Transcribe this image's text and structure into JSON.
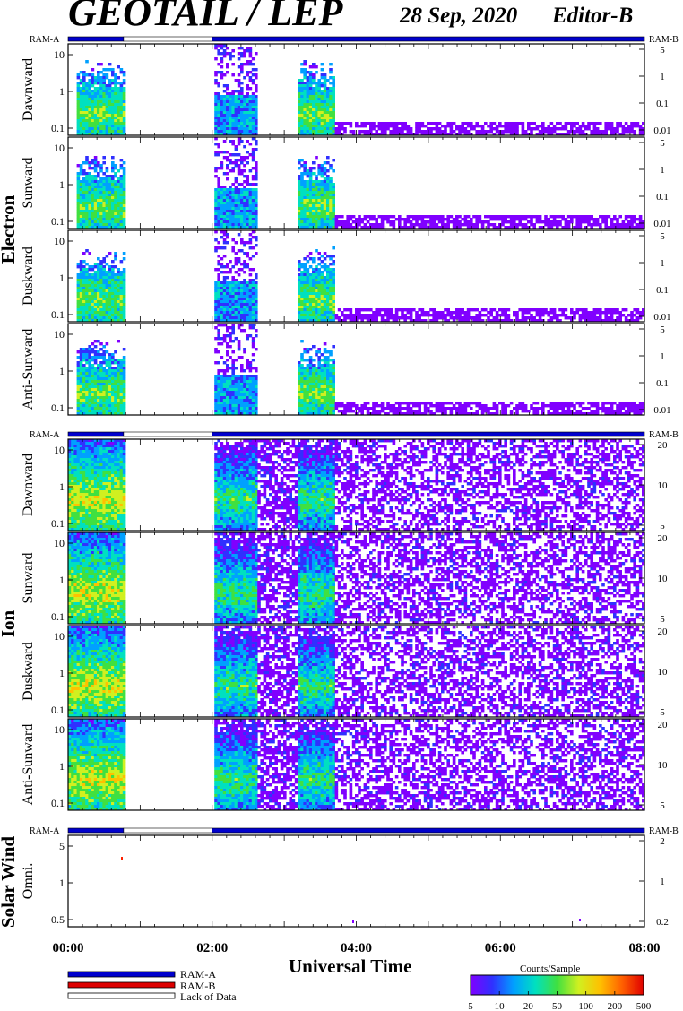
{
  "header": {
    "title": "GEOTAIL / LEP",
    "date": "28 Sep, 2020",
    "editor": "Editor-B"
  },
  "chart_data": {
    "type": "heatmap",
    "xlabel": "Universal Time",
    "x_ticks": [
      "00:00",
      "02:00",
      "04:00",
      "06:00",
      "08:00"
    ],
    "x_range_hours": [
      0,
      8
    ],
    "ram_bar": {
      "left_label": "RAM-A",
      "right_label": "RAM-B",
      "segments": [
        {
          "state": "RAM-A",
          "start": 0,
          "end": 0.77
        },
        {
          "state": "Lack of Data",
          "start": 0.77,
          "end": 2.0
        },
        {
          "state": "RAM-A",
          "start": 2.0,
          "end": 8.0
        }
      ]
    },
    "groups": [
      {
        "name": "Electron",
        "panels": [
          {
            "label": "Dawnward",
            "left_ticks": [
              "10",
              "1",
              "0.1"
            ],
            "right_ticks": [
              "5",
              "1",
              "0.1",
              "0.01"
            ]
          },
          {
            "label": "Sunward",
            "left_ticks": [
              "10",
              "1",
              "0.1"
            ],
            "right_ticks": [
              "5",
              "1",
              "0.1",
              "0.01"
            ]
          },
          {
            "label": "Duskward",
            "left_ticks": [
              "10",
              "1",
              "0.1"
            ],
            "right_ticks": [
              "5",
              "1",
              "0.1",
              "0.01"
            ]
          },
          {
            "label": "Anti-Sunward",
            "left_ticks": [
              "10",
              "1",
              "0.1"
            ],
            "right_ticks": [
              "5",
              "1",
              "0.1",
              "0.01"
            ]
          }
        ],
        "activity": [
          {
            "start": 0.08,
            "end": 0.77,
            "level": 3
          },
          {
            "start": 2.0,
            "end": 2.6,
            "level": 1
          },
          {
            "start": 3.15,
            "end": 3.7,
            "level": 3
          },
          {
            "start": 3.7,
            "end": 8.0,
            "level": 0.3
          }
        ]
      },
      {
        "name": "Ion",
        "panels": [
          {
            "label": "Dawnward",
            "left_ticks": [
              "10",
              "1",
              "0.1"
            ],
            "right_ticks": [
              "20",
              "10",
              "5"
            ]
          },
          {
            "label": "Sunward",
            "left_ticks": [
              "10",
              "1",
              "0.1"
            ],
            "right_ticks": [
              "20",
              "10",
              "5"
            ]
          },
          {
            "label": "Duskward",
            "left_ticks": [
              "10",
              "1",
              "0.1"
            ],
            "right_ticks": [
              "20",
              "10",
              "5"
            ]
          },
          {
            "label": "Anti-Sunward",
            "left_ticks": [
              "10",
              "1",
              "0.1"
            ],
            "right_ticks": [
              "20",
              "10",
              "5"
            ]
          }
        ],
        "activity": [
          {
            "start": 0.0,
            "end": 0.77,
            "level": 4
          },
          {
            "start": 2.0,
            "end": 2.6,
            "level": 2.5
          },
          {
            "start": 2.6,
            "end": 3.15,
            "level": 0.6
          },
          {
            "start": 3.15,
            "end": 3.7,
            "level": 2.5
          },
          {
            "start": 3.7,
            "end": 8.0,
            "level": 0.5
          }
        ]
      },
      {
        "name": "Solar Wind",
        "panels": [
          {
            "label": "Omni.",
            "left_ticks": [
              "5",
              "1",
              "0.5"
            ],
            "right_ticks": [
              "2",
              "1",
              "0.2"
            ]
          }
        ],
        "activity": []
      }
    ],
    "legend": [
      {
        "label": "RAM-A",
        "color": "#0000cc"
      },
      {
        "label": "RAM-B",
        "color": "#dd0000"
      },
      {
        "label": "Lack of Data",
        "color": "#ffffff"
      }
    ],
    "colorbar": {
      "title": "Counts/Sample",
      "ticks": [
        "5",
        "10",
        "20",
        "50",
        "100",
        "200",
        "500"
      ],
      "colors": [
        "#8000ff",
        "#3030ff",
        "#00a0ff",
        "#00e0c0",
        "#40e040",
        "#d0f020",
        "#ffc000",
        "#ff6000",
        "#e00000"
      ]
    }
  }
}
